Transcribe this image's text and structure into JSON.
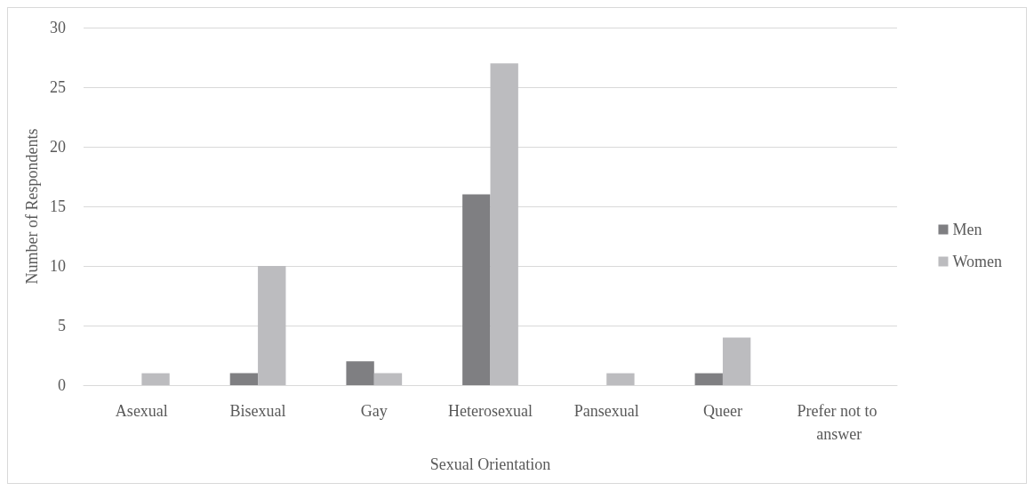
{
  "chart_data": {
    "type": "bar",
    "xlabel": "Sexual Orientation",
    "ylabel": "Number of Respondents",
    "categories": [
      "Asexual",
      "Bisexual",
      "Gay",
      "Heterosexual",
      "Pansexual",
      "Queer",
      "Prefer not to answer"
    ],
    "series": [
      {
        "name": "Men",
        "color": "#7f7f82",
        "values": [
          0,
          1,
          2,
          16,
          0,
          1,
          0
        ]
      },
      {
        "name": "Women",
        "color": "#bcbcbf",
        "values": [
          1,
          10,
          1,
          27,
          1,
          4,
          0
        ]
      }
    ],
    "ylim": [
      0,
      30
    ],
    "yticks": [
      0,
      5,
      10,
      15,
      20,
      25,
      30
    ],
    "grid": "y",
    "legend": "right"
  }
}
